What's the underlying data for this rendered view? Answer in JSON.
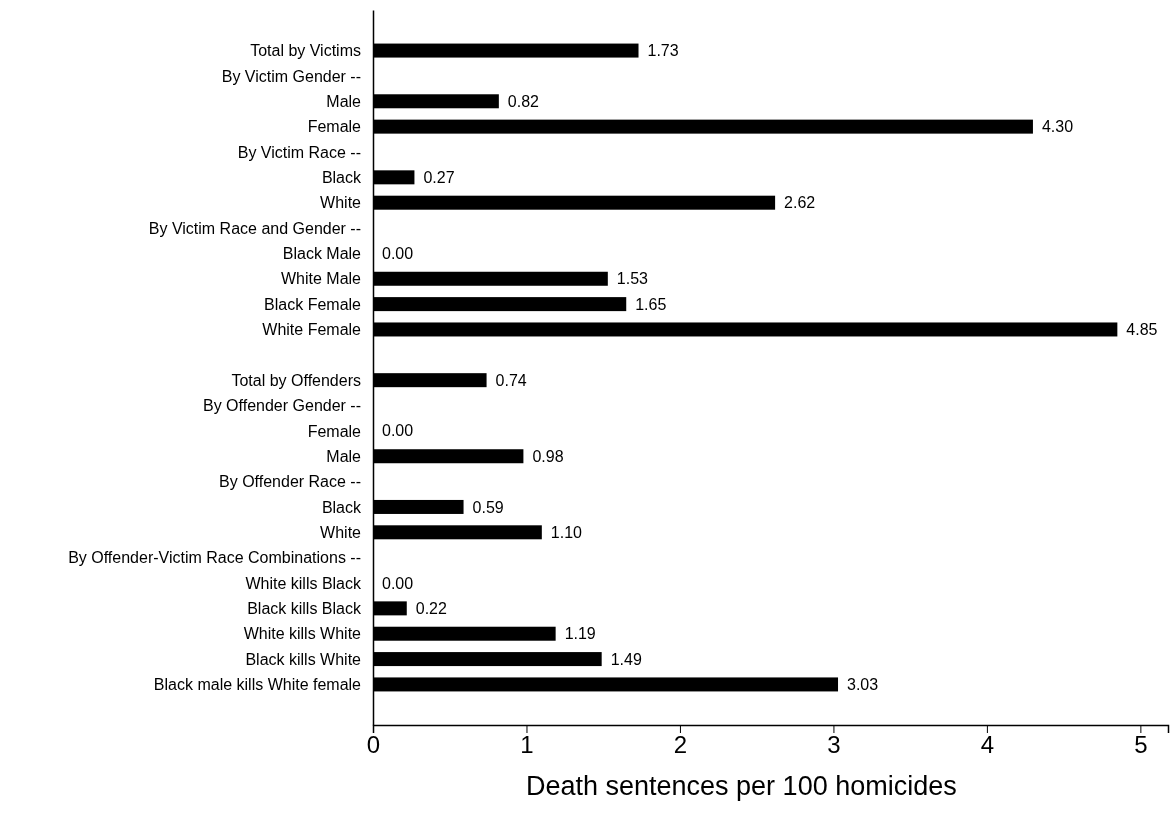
{
  "chart_data": {
    "type": "bar",
    "orientation": "horizontal",
    "xlabel": "Death sentences per 100 homicides",
    "categories": [
      "Total by Victims",
      "By Victim Gender --",
      "Male",
      "Female",
      "By Victim Race --",
      "Black",
      "White",
      "By Victim Race and Gender --",
      "Black Male",
      "White Male",
      "Black Female",
      "White Female",
      null,
      "Total by Offenders",
      "By Offender Gender --",
      "Female",
      "Male",
      "By Offender Race --",
      "Black",
      "White",
      "By Offender-Victim Race Combinations --",
      "White kills Black",
      "Black kills Black",
      "White kills White",
      "Black kills White",
      "Black male kills White female"
    ],
    "values": [
      1.73,
      null,
      0.82,
      4.3,
      null,
      0.27,
      2.62,
      null,
      0.0,
      1.53,
      1.65,
      4.85,
      null,
      0.74,
      null,
      0.0,
      0.98,
      null,
      0.59,
      1.1,
      null,
      0.0,
      0.22,
      1.19,
      1.49,
      3.03
    ],
    "value_labels": [
      "1.73",
      null,
      "0.82",
      "4.30",
      null,
      "0.27",
      "2.62",
      null,
      "0.00",
      "1.53",
      "1.65",
      "4.85",
      null,
      "0.74",
      null,
      "0.00",
      "0.98",
      null,
      "0.59",
      "1.10",
      null,
      "0.00",
      "0.22",
      "1.19",
      "1.49",
      "3.03"
    ],
    "color": "#000000",
    "xlim": [
      0,
      5.18
    ],
    "xticks": [
      0,
      1,
      2,
      3,
      4,
      5
    ],
    "grid": false
  }
}
